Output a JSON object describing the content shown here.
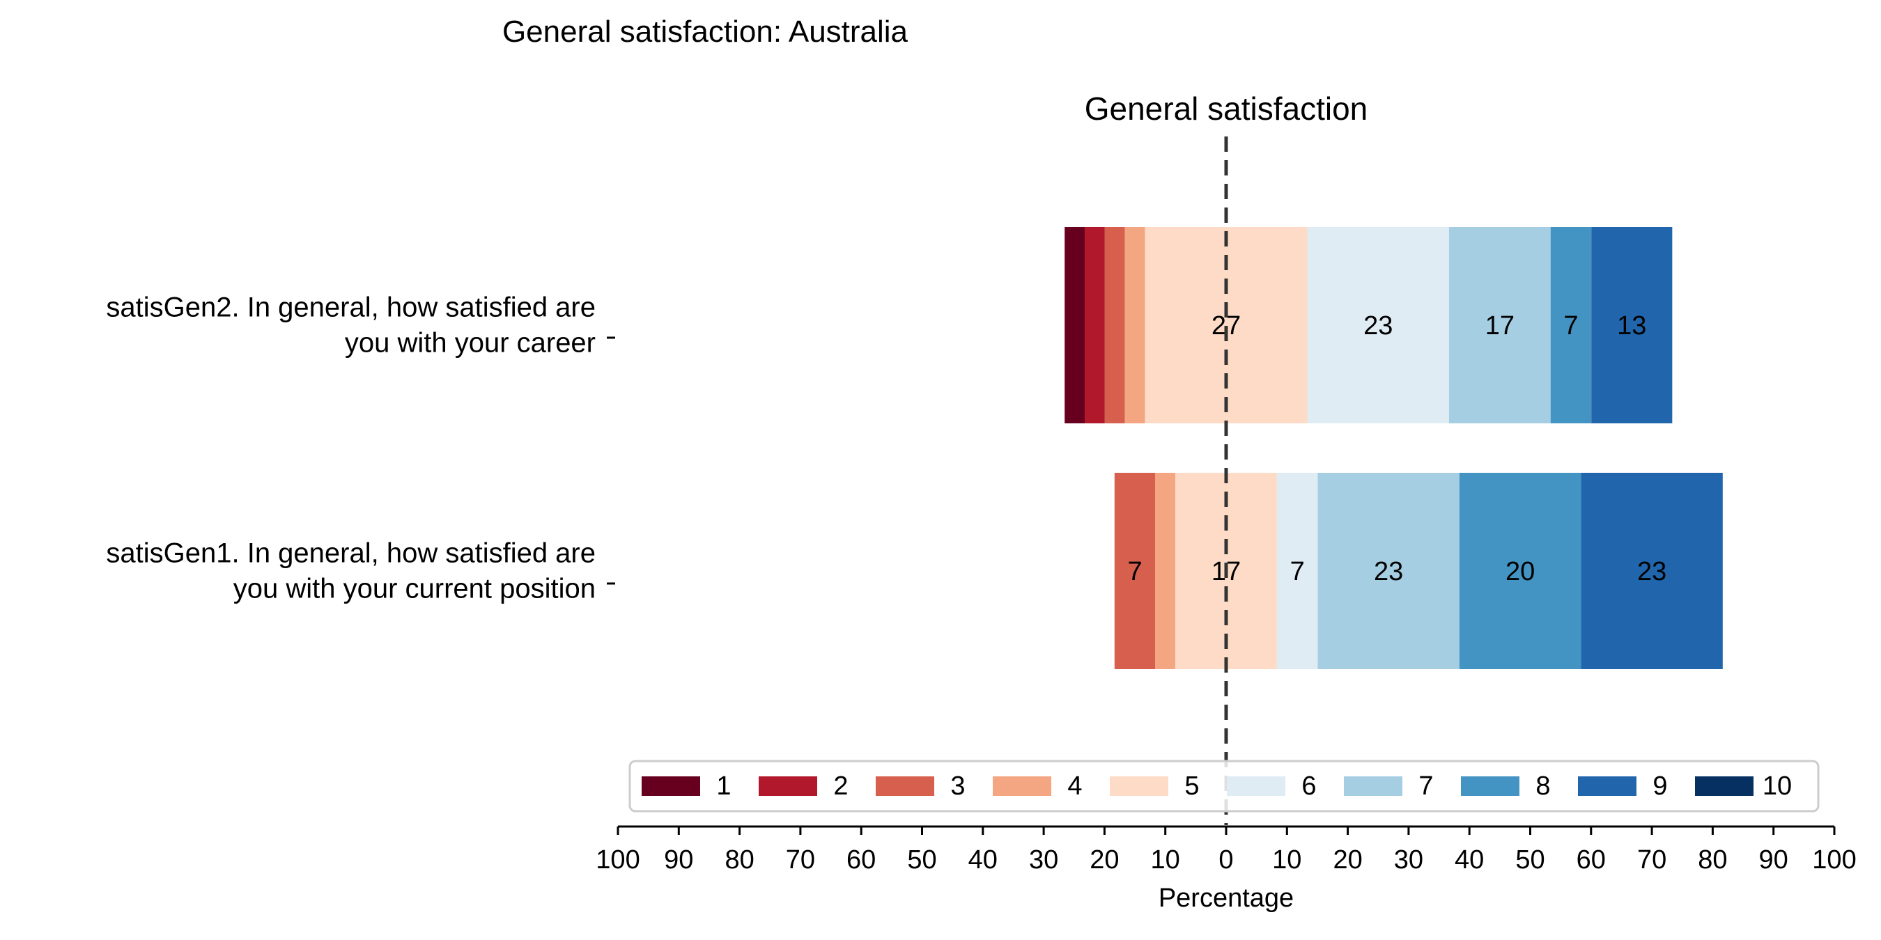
{
  "chart_data": {
    "type": "bar",
    "orientation": "horizontal",
    "stacking": "diverging",
    "title": "General satisfaction: Australia",
    "subtitle": "General satisfaction",
    "xlabel": "Percentage",
    "xlim": [
      -100,
      100
    ],
    "xticks": [
      -100,
      -90,
      -80,
      -70,
      -60,
      -50,
      -40,
      -30,
      -20,
      -10,
      0,
      10,
      20,
      30,
      40,
      50,
      60,
      70,
      80,
      90,
      100
    ],
    "xtick_labels": [
      "100",
      "90",
      "80",
      "70",
      "60",
      "50",
      "40",
      "30",
      "20",
      "10",
      "0",
      "10",
      "20",
      "30",
      "40",
      "50",
      "60",
      "70",
      "80",
      "90",
      "100"
    ],
    "center_line": 0,
    "grid": false,
    "legend_position": "bottom-center",
    "categories": [
      {
        "label": [
          "satisGen2. In general, how satisfied are",
          "you with your career"
        ]
      },
      {
        "label": [
          "satisGen1. In general, how satisfied are",
          "you with your current position"
        ]
      }
    ],
    "series": [
      {
        "name": "1",
        "color": "#67001f",
        "values": [
          3.3,
          0
        ]
      },
      {
        "name": "2",
        "color": "#b2182b",
        "values": [
          3.3,
          0
        ]
      },
      {
        "name": "3",
        "color": "#d6604d",
        "values": [
          3.3,
          6.7
        ]
      },
      {
        "name": "4",
        "color": "#f4a582",
        "values": [
          3.3,
          3.3
        ]
      },
      {
        "name": "5",
        "color": "#fddbc7",
        "values": [
          26.7,
          16.7
        ]
      },
      {
        "name": "6",
        "color": "#e0ecf4",
        "values": [
          23.3,
          6.7
        ]
      },
      {
        "name": "7",
        "color": "#a6cee3",
        "values": [
          16.7,
          23.3
        ]
      },
      {
        "name": "8",
        "color": "#4393c3",
        "values": [
          6.7,
          20
        ]
      },
      {
        "name": "9",
        "color": "#2166ac",
        "values": [
          13.3,
          23.3
        ]
      },
      {
        "name": "10",
        "color": "#053061",
        "values": [
          0,
          0
        ]
      }
    ],
    "data_labels": [
      [
        "",
        "",
        "",
        "",
        "27",
        "23",
        "17",
        "7",
        "13",
        ""
      ],
      [
        "",
        "",
        "7",
        "",
        "17",
        "7",
        "23",
        "20",
        "23",
        ""
      ]
    ]
  }
}
